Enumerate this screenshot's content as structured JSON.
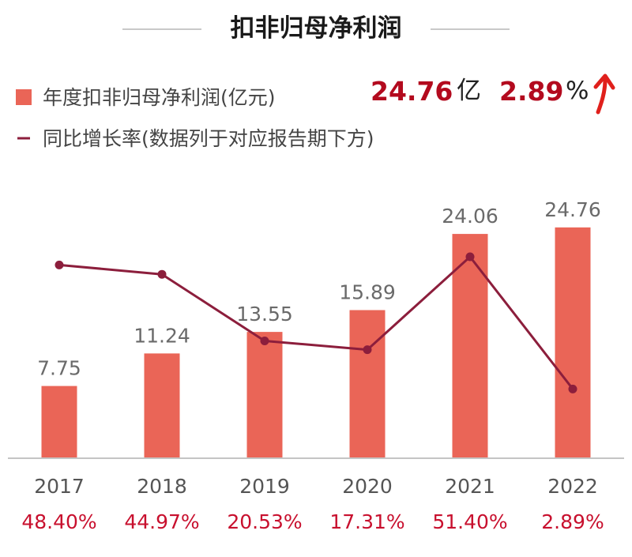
{
  "chart_data": {
    "type": "bar",
    "title": "扣非归母净利润",
    "categories": [
      "2017",
      "2018",
      "2019",
      "2020",
      "2021",
      "2022"
    ],
    "series": [
      {
        "name": "年度扣非归母净利润(亿元)",
        "type": "bar",
        "values": [
          7.75,
          11.24,
          13.55,
          15.89,
          24.06,
          24.76
        ],
        "labels": [
          "7.75",
          "11.24",
          "13.55",
          "15.89",
          "24.06",
          "24.76"
        ]
      },
      {
        "name": "同比增长率(数据列于对应报告期下方)",
        "type": "line",
        "values": [
          48.4,
          44.97,
          20.53,
          17.31,
          51.4,
          2.89
        ],
        "labels": [
          "48.40%",
          "44.97%",
          "20.53%",
          "17.31%",
          "51.40%",
          "2.89%"
        ]
      }
    ],
    "legend_position": "top-left",
    "grid": false
  },
  "kpi": {
    "value": "24.76",
    "unit": "亿",
    "rate": "2.89",
    "rate_unit": "%",
    "trend": "up-arrow-icon"
  },
  "colors": {
    "bar": "#ea6557",
    "line": "#8c1e3c",
    "rate_text": "#c8102e",
    "kpi_text": "#b30a1e",
    "arrow": "#e0201c"
  }
}
